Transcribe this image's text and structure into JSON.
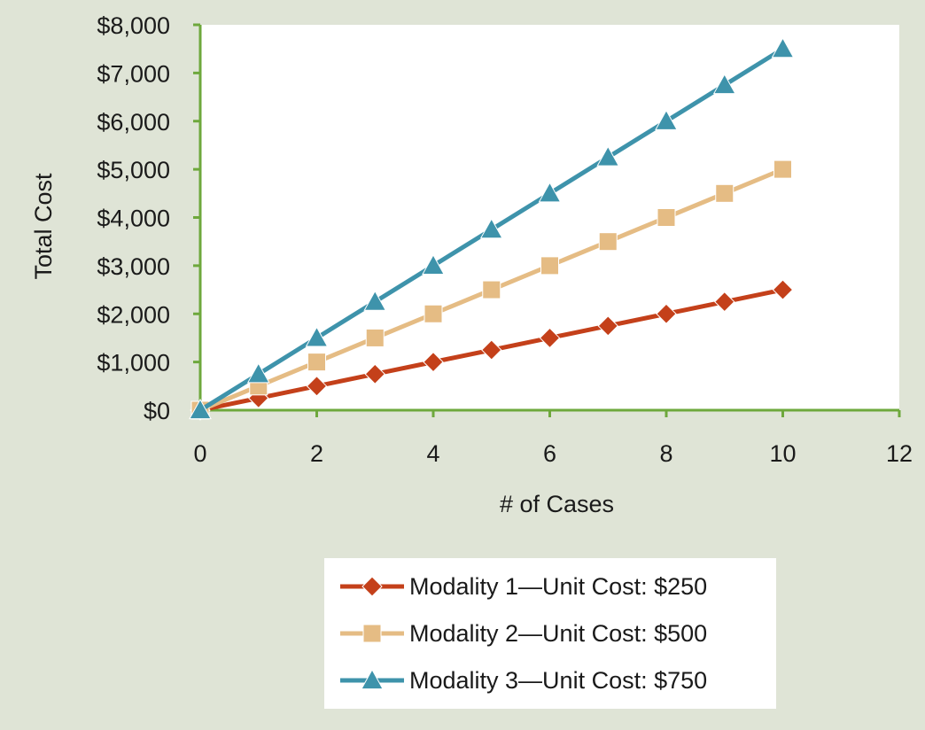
{
  "chart_data": {
    "type": "line",
    "xlabel": "# of Cases",
    "ylabel": "Total Cost",
    "xlim": [
      0,
      12
    ],
    "ylim": [
      0,
      8000
    ],
    "x_ticks": [
      "0",
      "2",
      "4",
      "6",
      "8",
      "10",
      "12"
    ],
    "y_ticks": [
      "$0",
      "$1,000",
      "$2,000",
      "$3,000",
      "$4,000",
      "$5,000",
      "$6,000",
      "$7,000",
      "$8,000"
    ],
    "grid": false,
    "legend_position": "bottom",
    "x": [
      0,
      1,
      2,
      3,
      4,
      5,
      6,
      7,
      8,
      9,
      10
    ],
    "series": [
      {
        "name": "Modality 1—Unit Cost: $250",
        "marker": "diamond",
        "color": "#c4401a",
        "values": [
          0,
          250,
          500,
          750,
          1000,
          1250,
          1500,
          1750,
          2000,
          2250,
          2500
        ]
      },
      {
        "name": "Modality 2—Unit Cost: $500",
        "marker": "square",
        "color": "#e5bc84",
        "values": [
          0,
          500,
          1000,
          1500,
          2000,
          2500,
          3000,
          3500,
          4000,
          4500,
          5000
        ]
      },
      {
        "name": "Modality 3—Unit Cost: $750",
        "marker": "triangle",
        "color": "#3e93ab",
        "values": [
          0,
          750,
          1500,
          2250,
          3000,
          3750,
          4500,
          5250,
          6000,
          6750,
          7500
        ]
      }
    ]
  },
  "colors": {
    "background": "#dfe4d6",
    "plot_area": "#ffffff",
    "axis": "#6ea83c"
  }
}
